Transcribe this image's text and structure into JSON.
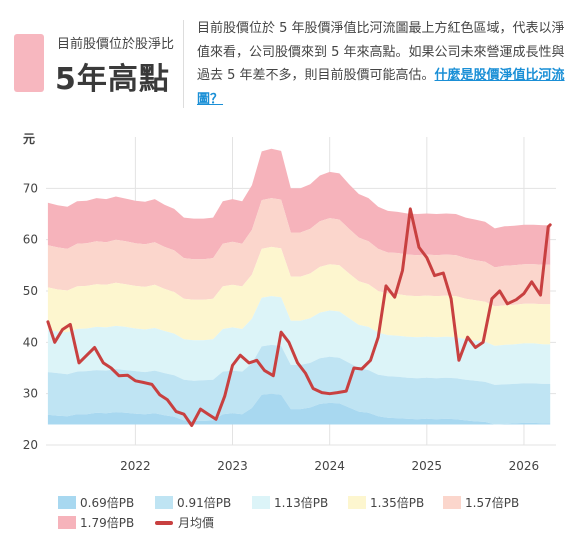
{
  "header": {
    "label": "目前股價位於股淨比",
    "value": "5年高點",
    "badge_color": "#f7b7bf",
    "description": "目前股價位於 5 年股價淨值比河流圖最上方紅色區域，代表以淨值來看，公司股價來到 5 年來高點。如果公司未來營運成長性與過去 5 年差不多，則目前股價可能高估。",
    "link_text": "什麼是股價淨值比河流圖？",
    "link_color": "#1a8fd6"
  },
  "chart_data": {
    "type": "area",
    "ylabel": "元",
    "ylim": [
      20,
      80
    ],
    "yticks": [
      20,
      30,
      40,
      50,
      60,
      70
    ],
    "x_range": [
      2021.08,
      2026.33
    ],
    "xticks": [
      "2022",
      "2023",
      "2024",
      "2025",
      "2026"
    ],
    "x": [
      2021.1,
      2021.2,
      2021.3,
      2021.4,
      2021.5,
      2021.6,
      2021.7,
      2021.8,
      2021.9,
      2022.0,
      2022.1,
      2022.2,
      2022.3,
      2022.4,
      2022.5,
      2022.6,
      2022.7,
      2022.8,
      2022.9,
      2023.0,
      2023.1,
      2023.2,
      2023.3,
      2023.4,
      2023.5,
      2023.6,
      2023.7,
      2023.8,
      2023.9,
      2024.0,
      2024.1,
      2024.2,
      2024.3,
      2024.4,
      2024.5,
      2024.6,
      2024.7,
      2024.8,
      2024.9,
      2025.0,
      2025.1,
      2025.2,
      2025.3,
      2025.4,
      2025.5,
      2025.6,
      2025.7,
      2025.8,
      2025.9,
      2026.0,
      2026.1,
      2026.2,
      2026.27
    ],
    "bands": [
      {
        "name": "0.69倍PB",
        "color": "#a8d8f0",
        "values": [
          25.9,
          25.7,
          25.6,
          26.0,
          26.0,
          26.3,
          26.2,
          26.4,
          26.3,
          26.1,
          26.0,
          26.2,
          25.8,
          25.5,
          24.8,
          24.7,
          24.7,
          24.8,
          26.0,
          26.2,
          26.0,
          27.2,
          29.8,
          30.0,
          29.8,
          27.0,
          27.0,
          27.3,
          28.0,
          28.2,
          28.1,
          27.3,
          26.5,
          26.3,
          25.6,
          25.3,
          25.2,
          25.1,
          25.0,
          25.1,
          25.0,
          25.1,
          25.0,
          24.8,
          24.6,
          24.5,
          24.0,
          24.1,
          24.2,
          24.3,
          24.3,
          24.2,
          24.2
        ]
      },
      {
        "name": "0.91倍PB",
        "color": "#bfe4f3",
        "values": [
          34.2,
          34.0,
          33.8,
          34.3,
          34.4,
          34.6,
          34.5,
          34.8,
          34.6,
          34.4,
          34.2,
          34.5,
          34.0,
          33.6,
          32.7,
          32.5,
          32.6,
          32.7,
          34.3,
          34.5,
          34.3,
          35.9,
          39.2,
          39.5,
          39.3,
          35.6,
          35.6,
          36.0,
          36.9,
          37.2,
          37.0,
          36.0,
          35.0,
          34.6,
          33.7,
          33.4,
          33.3,
          33.1,
          33.0,
          33.1,
          33.0,
          33.1,
          33.0,
          32.7,
          32.5,
          32.3,
          31.7,
          31.8,
          31.9,
          32.0,
          32.0,
          31.9,
          31.9
        ]
      },
      {
        "name": "1.13倍PB",
        "color": "#dcf4f8",
        "values": [
          42.4,
          42.1,
          42.0,
          42.6,
          42.7,
          43.0,
          42.9,
          43.2,
          43.0,
          42.7,
          42.5,
          42.8,
          42.2,
          41.7,
          40.6,
          40.4,
          40.4,
          40.6,
          42.6,
          42.9,
          42.6,
          44.6,
          48.7,
          49.0,
          48.8,
          44.2,
          44.2,
          44.7,
          45.8,
          46.2,
          46.0,
          44.7,
          43.4,
          43.0,
          41.9,
          41.4,
          41.3,
          41.1,
          41.0,
          41.1,
          41.0,
          41.1,
          41.0,
          40.6,
          40.3,
          40.1,
          39.3,
          39.5,
          39.6,
          39.8,
          39.8,
          39.6,
          39.6
        ]
      },
      {
        "name": "1.35倍PB",
        "color": "#fdf6cf",
        "values": [
          50.7,
          50.3,
          50.1,
          50.9,
          51.0,
          51.3,
          51.2,
          51.6,
          51.3,
          51.0,
          50.8,
          51.2,
          50.4,
          49.8,
          48.5,
          48.3,
          48.3,
          48.5,
          50.9,
          51.2,
          50.9,
          53.2,
          58.2,
          58.6,
          58.3,
          52.8,
          52.8,
          53.4,
          54.7,
          55.2,
          55.0,
          53.4,
          51.9,
          51.3,
          50.0,
          49.5,
          49.4,
          49.1,
          49.0,
          49.1,
          49.0,
          49.1,
          49.0,
          48.5,
          48.2,
          47.9,
          47.0,
          47.2,
          47.3,
          47.5,
          47.5,
          47.4,
          47.4
        ]
      },
      {
        "name": "1.57倍PB",
        "color": "#fbd6cc",
        "values": [
          58.9,
          58.5,
          58.2,
          59.2,
          59.3,
          59.7,
          59.5,
          60.0,
          59.7,
          59.3,
          59.1,
          59.5,
          58.6,
          57.9,
          56.4,
          56.2,
          56.2,
          56.4,
          59.2,
          59.6,
          59.2,
          61.9,
          67.7,
          68.1,
          67.8,
          61.4,
          61.4,
          62.1,
          63.6,
          64.2,
          63.9,
          62.1,
          60.4,
          59.7,
          58.2,
          57.5,
          57.4,
          57.1,
          57.0,
          57.1,
          57.0,
          57.1,
          57.0,
          56.4,
          56.0,
          55.7,
          54.6,
          54.9,
          55.0,
          55.2,
          55.2,
          55.1,
          55.1
        ]
      },
      {
        "name": "1.79倍PB",
        "color": "#f6b3bb",
        "values": [
          67.2,
          66.7,
          66.4,
          67.5,
          67.6,
          68.1,
          67.9,
          68.4,
          68.0,
          67.6,
          67.4,
          67.9,
          66.8,
          66.0,
          64.3,
          64.1,
          64.1,
          64.3,
          67.5,
          67.9,
          67.5,
          70.6,
          77.2,
          77.7,
          77.3,
          70.0,
          70.0,
          70.8,
          72.5,
          73.2,
          72.9,
          70.8,
          68.9,
          68.1,
          66.4,
          65.6,
          65.4,
          65.1,
          65.0,
          65.1,
          65.0,
          65.1,
          65.0,
          64.3,
          63.9,
          63.5,
          62.2,
          62.6,
          62.7,
          62.9,
          62.9,
          62.8,
          62.8
        ]
      }
    ],
    "band_floor": 24.0,
    "price_series": {
      "name": "月均價",
      "color": "#c84040",
      "x": [
        2021.1,
        2021.17,
        2021.25,
        2021.33,
        2021.42,
        2021.5,
        2021.58,
        2021.67,
        2021.75,
        2021.83,
        2021.92,
        2022.0,
        2022.08,
        2022.17,
        2022.25,
        2022.33,
        2022.42,
        2022.5,
        2022.58,
        2022.67,
        2022.75,
        2022.83,
        2022.92,
        2023.0,
        2023.08,
        2023.17,
        2023.25,
        2023.33,
        2023.42,
        2023.5,
        2023.58,
        2023.67,
        2023.75,
        2023.83,
        2023.92,
        2024.0,
        2024.08,
        2024.17,
        2024.25,
        2024.33,
        2024.42,
        2024.5,
        2024.58,
        2024.67,
        2024.75,
        2024.83,
        2024.92,
        2025.0,
        2025.08,
        2025.17,
        2025.25,
        2025.33,
        2025.42,
        2025.5,
        2025.58,
        2025.67,
        2025.75,
        2025.83,
        2025.92,
        2026.0,
        2026.08,
        2026.17,
        2026.25,
        2026.27
      ],
      "values": [
        44,
        40,
        42.5,
        43.5,
        36,
        37.5,
        39,
        36,
        35,
        33.5,
        33.6,
        32.5,
        32.2,
        31.8,
        29.8,
        28.8,
        26.5,
        26,
        23.8,
        27,
        26,
        25,
        29.5,
        35.5,
        37.5,
        36,
        36.5,
        34.5,
        33.5,
        42,
        40,
        36,
        34,
        31,
        30.2,
        30,
        30.2,
        30.5,
        35,
        34.8,
        36.5,
        41,
        51,
        48.8,
        54,
        66,
        58.5,
        56.5,
        53,
        53.5,
        48.5,
        36.5,
        41,
        39,
        40,
        48.5,
        50,
        47.5,
        48.3,
        49.5,
        51.8,
        49.2,
        62.5,
        62.9
      ]
    }
  },
  "legend": [
    {
      "label": "0.69倍PB",
      "color": "#a8d8f0",
      "kind": "band"
    },
    {
      "label": "0.91倍PB",
      "color": "#bfe4f3",
      "kind": "band"
    },
    {
      "label": "1.13倍PB",
      "color": "#dcf4f8",
      "kind": "band"
    },
    {
      "label": "1.35倍PB",
      "color": "#fdf6cf",
      "kind": "band"
    },
    {
      "label": "1.57倍PB",
      "color": "#fbd6cc",
      "kind": "band"
    },
    {
      "label": "1.79倍PB",
      "color": "#f6b3bb",
      "kind": "band"
    },
    {
      "label": "月均價",
      "color": "#c84040",
      "kind": "line"
    }
  ]
}
